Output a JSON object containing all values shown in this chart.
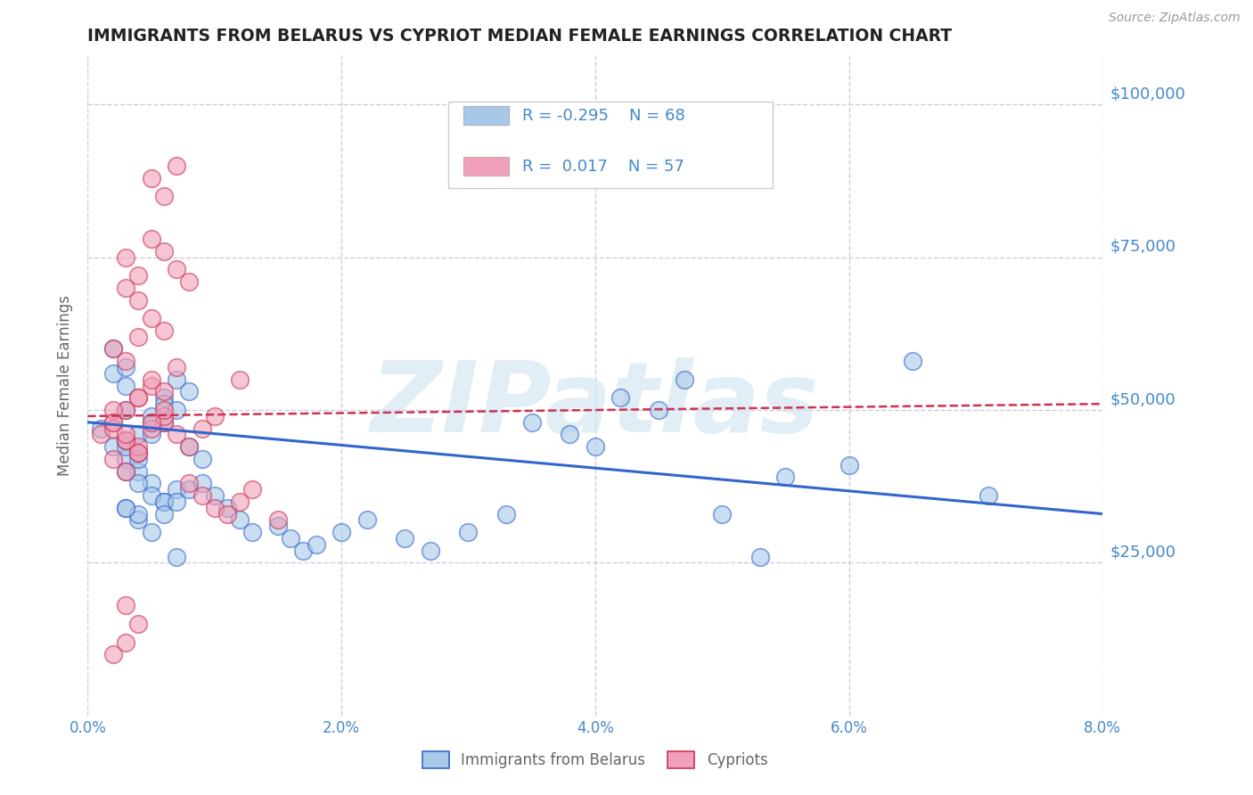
{
  "title": "IMMIGRANTS FROM BELARUS VS CYPRIOT MEDIAN FEMALE EARNINGS CORRELATION CHART",
  "source_text": "Source: ZipAtlas.com",
  "ylabel": "Median Female Earnings",
  "xlim": [
    0.0,
    0.08
  ],
  "ylim": [
    0,
    108000
  ],
  "yticks": [
    25000,
    50000,
    75000,
    100000
  ],
  "ytick_labels": [
    "$25,000",
    "$50,000",
    "$75,000",
    "$100,000"
  ],
  "xticks": [
    0.0,
    0.02,
    0.04,
    0.06,
    0.08
  ],
  "xtick_labels": [
    "0.0%",
    "2.0%",
    "4.0%",
    "6.0%",
    "8.0%"
  ],
  "legend_labels_bottom": [
    "Immigrants from Belarus",
    "Cypriots"
  ],
  "legend_r_blue": "-0.295",
  "legend_n_blue": "68",
  "legend_r_pink": "0.017",
  "legend_n_pink": "57",
  "blue_color": "#a8c8e8",
  "pink_color": "#f0a0b8",
  "blue_line_color": "#3366cc",
  "pink_line_color": "#cc3355",
  "title_color": "#222222",
  "axis_label_color": "#666666",
  "tick_label_color": "#4488cc",
  "grid_color": "#ccccdd",
  "watermark_color": "#d0e4f0",
  "blue_scatter_x": [
    0.001,
    0.002,
    0.003,
    0.004,
    0.005,
    0.006,
    0.003,
    0.004,
    0.005,
    0.006,
    0.007,
    0.008,
    0.003,
    0.004,
    0.005,
    0.006,
    0.007,
    0.003,
    0.004,
    0.005,
    0.006,
    0.007,
    0.008,
    0.009,
    0.003,
    0.004,
    0.005,
    0.006,
    0.003,
    0.004,
    0.005,
    0.006,
    0.007,
    0.008,
    0.009,
    0.01,
    0.011,
    0.012,
    0.013,
    0.015,
    0.016,
    0.017,
    0.018,
    0.02,
    0.022,
    0.025,
    0.027,
    0.03,
    0.033,
    0.035,
    0.038,
    0.04,
    0.042,
    0.045,
    0.047,
    0.05,
    0.053,
    0.055,
    0.06,
    0.065,
    0.002,
    0.002,
    0.003,
    0.003,
    0.004,
    0.007,
    0.071,
    0.003
  ],
  "blue_scatter_y": [
    47000,
    44000,
    50000,
    46000,
    48000,
    52000,
    45000,
    43000,
    49000,
    51000,
    55000,
    53000,
    42000,
    40000,
    38000,
    35000,
    37000,
    44000,
    42000,
    46000,
    48000,
    50000,
    44000,
    42000,
    40000,
    38000,
    36000,
    35000,
    34000,
    32000,
    30000,
    33000,
    35000,
    37000,
    38000,
    36000,
    34000,
    32000,
    30000,
    31000,
    29000,
    27000,
    28000,
    30000,
    32000,
    29000,
    27000,
    30000,
    33000,
    48000,
    46000,
    44000,
    52000,
    50000,
    55000,
    33000,
    26000,
    39000,
    41000,
    58000,
    56000,
    60000,
    54000,
    57000,
    33000,
    26000,
    36000,
    34000
  ],
  "pink_scatter_x": [
    0.001,
    0.002,
    0.003,
    0.004,
    0.005,
    0.006,
    0.007,
    0.008,
    0.009,
    0.01,
    0.002,
    0.003,
    0.004,
    0.005,
    0.006,
    0.007,
    0.003,
    0.004,
    0.005,
    0.006,
    0.003,
    0.004,
    0.005,
    0.006,
    0.007,
    0.008,
    0.003,
    0.004,
    0.005,
    0.006,
    0.002,
    0.003,
    0.004,
    0.008,
    0.009,
    0.01,
    0.011,
    0.012,
    0.013,
    0.015,
    0.005,
    0.006,
    0.007,
    0.012,
    0.002,
    0.003,
    0.004,
    0.002,
    0.002,
    0.003,
    0.004,
    0.005,
    0.006,
    0.002,
    0.003,
    0.004,
    0.003
  ],
  "pink_scatter_y": [
    46000,
    48000,
    50000,
    52000,
    54000,
    48000,
    46000,
    44000,
    47000,
    49000,
    60000,
    58000,
    62000,
    55000,
    53000,
    57000,
    70000,
    68000,
    65000,
    63000,
    75000,
    72000,
    78000,
    76000,
    73000,
    71000,
    45000,
    43000,
    47000,
    49000,
    42000,
    40000,
    44000,
    38000,
    36000,
    34000,
    33000,
    35000,
    37000,
    32000,
    88000,
    85000,
    90000,
    55000,
    47000,
    45000,
    43000,
    50000,
    48000,
    46000,
    52000,
    48000,
    50000,
    10000,
    12000,
    15000,
    18000
  ],
  "blue_trend_x": [
    0.0,
    0.08
  ],
  "blue_trend_y": [
    48000,
    33000
  ],
  "pink_trend_x": [
    0.0,
    0.08
  ],
  "pink_trend_y": [
    49000,
    51000
  ],
  "watermark": "ZIPatlas"
}
